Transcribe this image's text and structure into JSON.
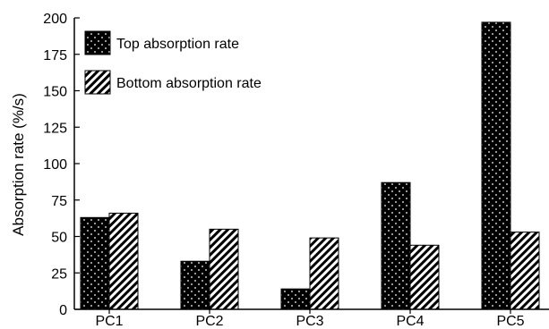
{
  "chart_data": {
    "type": "bar",
    "title": "",
    "xlabel": "",
    "ylabel": "Absorption rate (%/s)",
    "categories": [
      "PC1",
      "PC2",
      "PC3",
      "PC4",
      "PC5"
    ],
    "series": [
      {
        "name": "Top absorption rate",
        "values": [
          63,
          33,
          14,
          87,
          197
        ],
        "pattern": "dots",
        "color": "#000000"
      },
      {
        "name": "Bottom absorption rate",
        "values": [
          66,
          55,
          49,
          44,
          53
        ],
        "pattern": "hatch",
        "color": "#000000"
      }
    ],
    "ylim": [
      0,
      200
    ],
    "yticks": [
      "0",
      "25",
      "50",
      "75",
      "100",
      "125",
      "150",
      "175",
      "200"
    ],
    "grid": false,
    "legend_position": "top-left"
  }
}
